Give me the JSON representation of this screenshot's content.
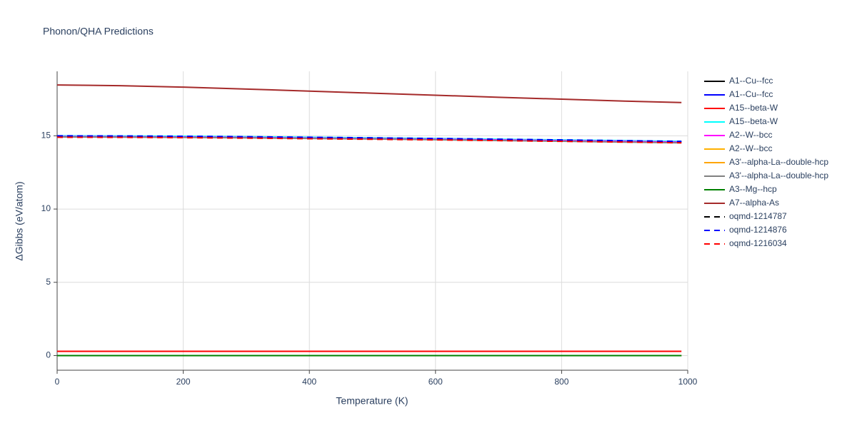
{
  "chart_data": {
    "type": "line",
    "title": "Phonon/QHA Predictions",
    "x_label": "Temperature (K)",
    "y_label": "ΔGibbs (eV/atom)",
    "x": [
      0,
      100,
      200,
      300,
      400,
      500,
      600,
      700,
      800,
      900,
      990
    ],
    "xlim": [
      0,
      1000
    ],
    "xticks": [
      0,
      200,
      400,
      600,
      800,
      1000
    ],
    "ylim": [
      -1,
      19.4
    ],
    "yticks": [
      0,
      5,
      10,
      15
    ],
    "grid": true,
    "legend": "right",
    "series": [
      {
        "name": "A1--Cu--fcc",
        "color": "#000000",
        "dash": "solid",
        "values": [
          0,
          0,
          0,
          0,
          0,
          0,
          0,
          0,
          0,
          0,
          0
        ]
      },
      {
        "name": "A1--Cu--fcc",
        "color": "#0000ff",
        "dash": "solid",
        "values": [
          0,
          0,
          0,
          0,
          0,
          0,
          0,
          0,
          0,
          0,
          0
        ]
      },
      {
        "name": "A15--beta-W",
        "color": "#ff0000",
        "dash": "solid",
        "values": [
          0.29,
          0.29,
          0.29,
          0.29,
          0.29,
          0.29,
          0.29,
          0.29,
          0.29,
          0.29,
          0.29
        ]
      },
      {
        "name": "A15--beta-W",
        "color": "#00ffff",
        "dash": "solid",
        "values": [
          15.0,
          14.99,
          14.97,
          14.94,
          14.9,
          14.86,
          14.82,
          14.77,
          14.72,
          14.67,
          14.62
        ]
      },
      {
        "name": "A2--W--bcc",
        "color": "#ff00ff",
        "dash": "solid",
        "values": [
          14.95,
          14.94,
          14.92,
          14.89,
          14.85,
          14.81,
          14.77,
          14.72,
          14.67,
          14.62,
          14.57
        ]
      },
      {
        "name": "A2--W--bcc",
        "color": "#ffb000",
        "dash": "solid",
        "values": [
          0,
          0,
          0,
          0,
          0,
          0,
          0,
          0,
          0,
          0,
          0
        ]
      },
      {
        "name": "A3'--alpha-La--double-hcp",
        "color": "#ffa500",
        "dash": "solid",
        "values": [
          0,
          0,
          0,
          0,
          0,
          0,
          0,
          0,
          0,
          0,
          0
        ]
      },
      {
        "name": "A3'--alpha-La--double-hcp",
        "color": "#808080",
        "dash": "solid",
        "values": [
          14.92,
          14.91,
          14.89,
          14.86,
          14.82,
          14.78,
          14.73,
          14.68,
          14.63,
          14.57,
          14.52
        ]
      },
      {
        "name": "A3--Mg--hcp",
        "color": "#008000",
        "dash": "solid",
        "values": [
          0,
          0,
          0,
          0,
          0,
          0,
          0,
          0,
          0,
          0,
          0
        ]
      },
      {
        "name": "A7--alpha-As",
        "color": "#a52a2a",
        "dash": "solid",
        "values": [
          18.47,
          18.42,
          18.32,
          18.19,
          18.05,
          17.91,
          17.77,
          17.63,
          17.5,
          17.37,
          17.27
        ]
      },
      {
        "name": "oqmd-1214787",
        "color": "#000000",
        "dash": "dash",
        "values": [
          14.97,
          14.96,
          14.94,
          14.91,
          14.87,
          14.83,
          14.79,
          14.74,
          14.69,
          14.64,
          14.59
        ]
      },
      {
        "name": "oqmd-1214876",
        "color": "#0000ff",
        "dash": "dash",
        "values": [
          15.0,
          14.99,
          14.97,
          14.94,
          14.9,
          14.86,
          14.82,
          14.77,
          14.72,
          14.67,
          14.62
        ]
      },
      {
        "name": "oqmd-1216034",
        "color": "#ff0000",
        "dash": "dash",
        "values": [
          14.9,
          14.89,
          14.87,
          14.84,
          14.8,
          14.76,
          14.72,
          14.67,
          14.62,
          14.57,
          14.52
        ]
      }
    ]
  }
}
